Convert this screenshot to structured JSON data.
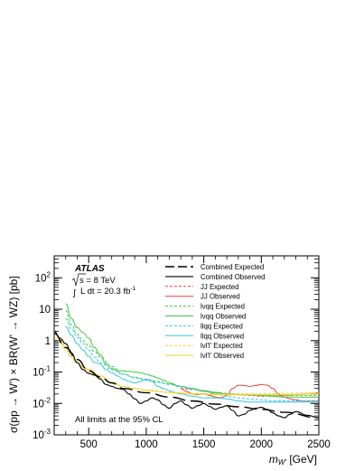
{
  "chart_data": {
    "type": "line",
    "x_axis": {
      "label_main": "m",
      "label_sub": "W'",
      "label_unit": " [GeV]",
      "lim": [
        200,
        2500
      ],
      "ticks": [
        500,
        1000,
        1500,
        2000,
        2500
      ],
      "tick_labels": [
        "500",
        "1000",
        "1500",
        "2000",
        "2500"
      ]
    },
    "y_axis": {
      "label": "σ(pp → W') × BR(W' → WZ)  [pb]",
      "scale": "log",
      "lim": [
        0.001,
        500
      ],
      "tick_labels": [
        {
          "value": 100,
          "base": "10",
          "exp": "2"
        },
        {
          "value": 10,
          "base": "10",
          "exp": ""
        },
        {
          "value": 1,
          "base": "1",
          "exp": ""
        },
        {
          "value": 0.1,
          "base": "10",
          "exp": "-1"
        },
        {
          "value": 0.01,
          "base": "10",
          "exp": "-2"
        },
        {
          "value": 0.001,
          "base": "10",
          "exp": "-3"
        }
      ]
    },
    "annotations": {
      "experiment": "ATLAS",
      "energy": "s = 8 TeV",
      "lumi_prefix": "L dt = 20.3 fb",
      "lumi_exp": "-1",
      "note": "All limits at the 95% CL"
    },
    "legend_position": "top-right",
    "series": [
      {
        "name": "Combined Expected",
        "color": "#000000",
        "dash": "long",
        "width": 1.4,
        "x": [
          200,
          300,
          400,
          500,
          600,
          700,
          800,
          1000,
          1200,
          1400,
          1600,
          1800,
          2000,
          2200,
          2500
        ],
        "y": [
          1.7,
          0.6,
          0.25,
          0.11,
          0.07,
          0.045,
          0.03,
          0.022,
          0.016,
          0.012,
          0.0095,
          0.0078,
          0.0065,
          0.0052,
          0.0035
        ]
      },
      {
        "name": "Combined Observed",
        "color": "#000000",
        "dash": "solid",
        "width": 1.1,
        "x": [
          200,
          250,
          300,
          350,
          400,
          450,
          500,
          550,
          600,
          650,
          700,
          750,
          800,
          850,
          900,
          950,
          1000,
          1050,
          1100,
          1150,
          1200,
          1250,
          1300,
          1350,
          1400,
          1450,
          1500,
          1550,
          1600,
          1650,
          1700,
          1750,
          1800,
          1850,
          1900,
          1950,
          2000,
          2050,
          2100,
          2150,
          2200,
          2250,
          2300,
          2400,
          2500
        ],
        "y": [
          2,
          1.2,
          0.8,
          0.4,
          0.2,
          0.12,
          0.09,
          0.08,
          0.06,
          0.04,
          0.035,
          0.03,
          0.028,
          0.02,
          0.014,
          0.01,
          0.012,
          0.015,
          0.013,
          0.009,
          0.007,
          0.01,
          0.012,
          0.009,
          0.007,
          0.0085,
          0.01,
          0.008,
          0.0065,
          0.0075,
          0.0085,
          0.006,
          0.004,
          0.0045,
          0.006,
          0.007,
          0.0075,
          0.0065,
          0.005,
          0.004,
          0.0035,
          0.0045,
          0.0055,
          0.0042,
          0.0035
        ]
      },
      {
        "name": "JJ Expected",
        "color": "#e8413c",
        "dash": "short",
        "width": 1,
        "x": [
          1300,
          1400,
          1500,
          1600,
          1700,
          1800,
          1900,
          2000,
          2100,
          2200,
          2300,
          2400,
          2500
        ],
        "y": [
          0.03,
          0.028,
          0.025,
          0.022,
          0.02,
          0.019,
          0.018,
          0.017,
          0.017,
          0.018,
          0.019,
          0.02,
          0.022
        ]
      },
      {
        "name": "JJ Observed",
        "color": "#e8413c",
        "dash": "solid",
        "width": 1,
        "x": [
          1300,
          1350,
          1400,
          1450,
          1500,
          1550,
          1600,
          1650,
          1700,
          1750,
          1800,
          1850,
          1900,
          1950,
          2000,
          2050,
          2100,
          2150,
          2200,
          2250,
          2300,
          2350,
          2400,
          2450,
          2500
        ],
        "y": [
          0.03,
          0.024,
          0.02,
          0.019,
          0.02,
          0.018,
          0.016,
          0.015,
          0.018,
          0.03,
          0.038,
          0.037,
          0.035,
          0.037,
          0.04,
          0.038,
          0.03,
          0.02,
          0.016,
          0.014,
          0.013,
          0.012,
          0.012,
          0.012,
          0.012
        ]
      },
      {
        "name": "lνqq Expected",
        "color": "#3ec93e",
        "dash": "short",
        "width": 1,
        "x": [
          300,
          350,
          400,
          450,
          500,
          550,
          600,
          700,
          800,
          900,
          1000,
          1100,
          1200,
          1300,
          1400,
          1500,
          1600,
          1700,
          1800,
          1900,
          2000,
          2100,
          2200,
          2300,
          2400,
          2500
        ],
        "y": [
          9,
          3.2,
          1.6,
          1.0,
          0.7,
          0.45,
          0.3,
          0.15,
          0.085,
          0.068,
          0.058,
          0.05,
          0.042,
          0.035,
          0.03,
          0.026,
          0.023,
          0.021,
          0.02,
          0.019,
          0.018,
          0.018,
          0.018,
          0.018,
          0.018,
          0.018
        ]
      },
      {
        "name": "lνqq Observed",
        "color": "#3ec93e",
        "dash": "solid",
        "width": 1,
        "x": [
          300,
          350,
          400,
          450,
          500,
          550,
          600,
          650,
          700,
          750,
          800,
          850,
          900,
          950,
          1000,
          1050,
          1100,
          1150,
          1200,
          1300,
          1400,
          1500,
          1600,
          1700,
          1800,
          1900,
          2000,
          2100,
          2200,
          2300,
          2400,
          2500
        ],
        "y": [
          15,
          5,
          2.6,
          1.8,
          1.2,
          0.6,
          0.35,
          0.18,
          0.13,
          0.11,
          0.11,
          0.105,
          0.1,
          0.095,
          0.085,
          0.075,
          0.065,
          0.055,
          0.045,
          0.035,
          0.03,
          0.024,
          0.022,
          0.02,
          0.019,
          0.019,
          0.018,
          0.017,
          0.016,
          0.016,
          0.016,
          0.016
        ]
      },
      {
        "name": "llqq Expected",
        "color": "#36c6e8",
        "dash": "short",
        "width": 1,
        "x": [
          300,
          350,
          400,
          450,
          500,
          550,
          600,
          700,
          800,
          900,
          1000,
          1100,
          1200,
          1300,
          1400,
          1500,
          1600,
          1700,
          1800,
          1900,
          2000,
          2100,
          2200,
          2300,
          2400,
          2500
        ],
        "y": [
          5,
          2.4,
          1.3,
          0.8,
          0.5,
          0.3,
          0.2,
          0.12,
          0.085,
          0.065,
          0.055,
          0.047,
          0.04,
          0.034,
          0.028,
          0.024,
          0.02,
          0.017,
          0.015,
          0.014,
          0.013,
          0.012,
          0.012,
          0.012,
          0.012,
          0.012
        ]
      },
      {
        "name": "llqq Observed",
        "color": "#36c6e8",
        "dash": "solid",
        "width": 1,
        "x": [
          300,
          350,
          400,
          450,
          500,
          550,
          600,
          650,
          700,
          750,
          800,
          850,
          900,
          950,
          1000,
          1050,
          1100,
          1150,
          1200,
          1300,
          1400,
          1500,
          1600,
          1700,
          1800,
          1900,
          2000,
          2100,
          2200,
          2300,
          2400,
          2500
        ],
        "y": [
          2.8,
          1.5,
          0.8,
          0.5,
          0.32,
          0.2,
          0.18,
          0.12,
          0.095,
          0.075,
          0.06,
          0.05,
          0.045,
          0.05,
          0.06,
          0.05,
          0.035,
          0.03,
          0.025,
          0.02,
          0.017,
          0.015,
          0.015,
          0.014,
          0.012,
          0.011,
          0.011,
          0.011,
          0.011,
          0.011,
          0.011,
          0.011
        ]
      },
      {
        "name": "lνl'l' Expected",
        "color": "#f2d22e",
        "dash": "short",
        "width": 1,
        "x": [
          200,
          250,
          300,
          350,
          400,
          450,
          500,
          600,
          700,
          800,
          900,
          1000,
          1200,
          1400,
          1600,
          1800,
          2000,
          2200,
          2500
        ],
        "y": [
          1.8,
          0.9,
          0.5,
          0.3,
          0.2,
          0.14,
          0.1,
          0.065,
          0.045,
          0.035,
          0.03,
          0.027,
          0.023,
          0.021,
          0.02,
          0.02,
          0.02,
          0.021,
          0.022
        ]
      },
      {
        "name": "lνl'l' Observed",
        "color": "#f2d22e",
        "dash": "solid",
        "width": 1,
        "x": [
          200,
          250,
          300,
          350,
          400,
          450,
          500,
          600,
          700,
          800,
          900,
          1000,
          1100,
          1200,
          1400,
          1600,
          1800,
          2000,
          2200,
          2500
        ],
        "y": [
          2.0,
          1.2,
          0.6,
          0.3,
          0.2,
          0.15,
          0.12,
          0.075,
          0.048,
          0.035,
          0.03,
          0.026,
          0.024,
          0.022,
          0.02,
          0.019,
          0.019,
          0.019,
          0.019,
          0.02
        ]
      }
    ]
  }
}
